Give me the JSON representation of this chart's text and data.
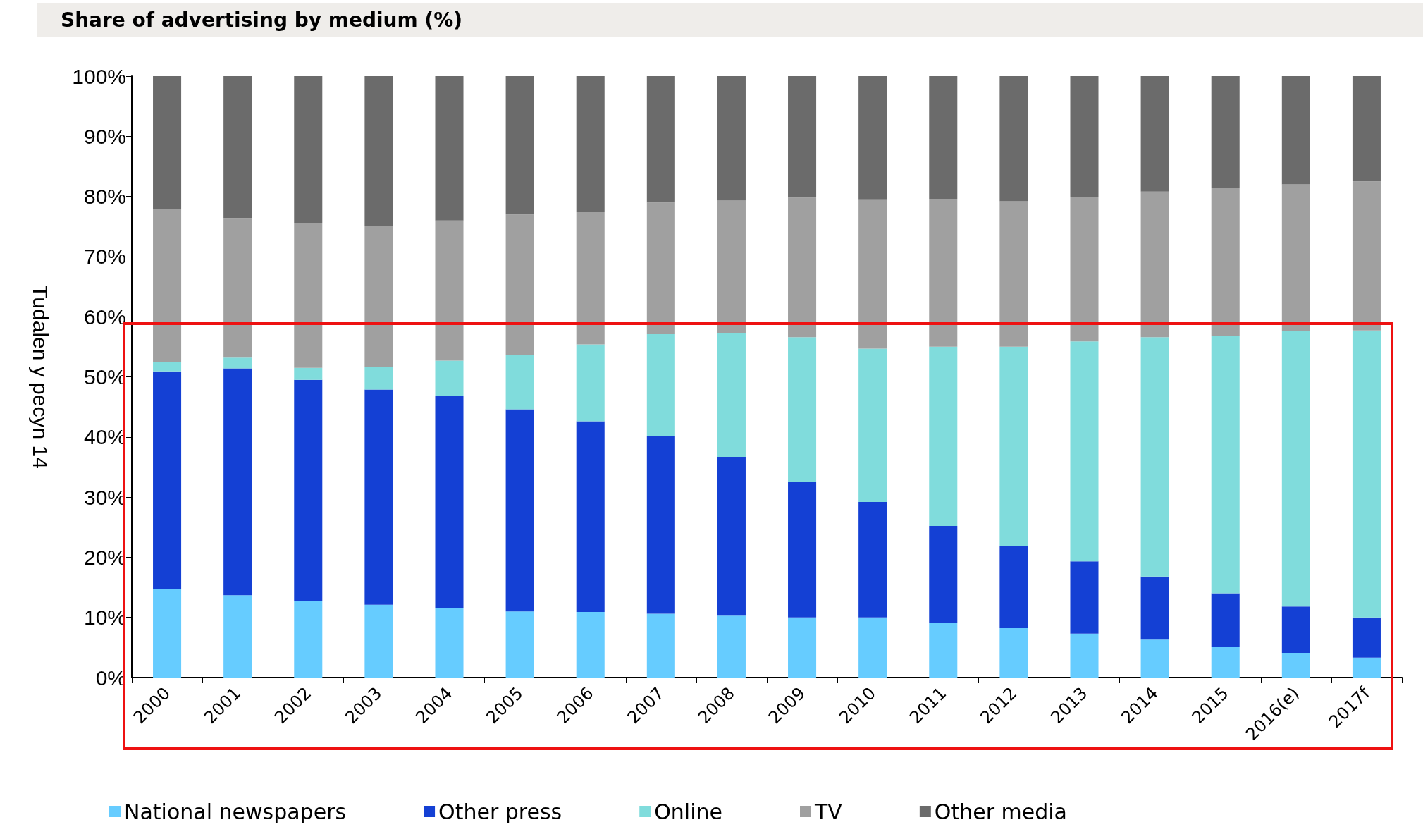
{
  "chart_data": {
    "type": "bar",
    "stacked": true,
    "title": "Share of advertising by medium (%)",
    "ylabel": "Tudalen y pecyn 14",
    "categories": [
      "2000",
      "2001",
      "2002",
      "2003",
      "2004",
      "2005",
      "2006",
      "2007",
      "2008",
      "2009",
      "2010",
      "2011",
      "2012",
      "2013",
      "2014",
      "2015",
      "2016(e)",
      "2017f"
    ],
    "series": [
      {
        "name": "National newspapers",
        "color": "#66ccff",
        "values": [
          14.7,
          13.7,
          12.7,
          12.1,
          11.6,
          11.0,
          10.9,
          10.6,
          10.3,
          10.0,
          10.0,
          9.1,
          8.2,
          7.3,
          6.3,
          5.1,
          4.1,
          3.3
        ]
      },
      {
        "name": "Other press",
        "color": "#1440d4",
        "values": [
          36.2,
          37.7,
          36.8,
          35.8,
          35.2,
          33.6,
          31.7,
          29.6,
          26.4,
          22.6,
          19.2,
          16.1,
          13.7,
          12.0,
          10.5,
          8.9,
          7.7,
          6.7
        ]
      },
      {
        "name": "Online",
        "color": "#80dcdc",
        "values": [
          1.5,
          1.8,
          2.0,
          3.8,
          5.9,
          9.0,
          12.8,
          16.9,
          20.6,
          24.0,
          25.5,
          29.8,
          33.1,
          36.6,
          39.8,
          42.8,
          45.8,
          47.7
        ]
      },
      {
        "name": "TV",
        "color": "#a0a0a0",
        "values": [
          25.5,
          23.2,
          24.0,
          23.4,
          23.3,
          23.4,
          22.1,
          21.9,
          22.0,
          23.2,
          24.8,
          24.6,
          24.2,
          24.0,
          24.2,
          24.6,
          24.4,
          24.8
        ]
      },
      {
        "name": "Other media",
        "color": "#6b6b6b",
        "values": [
          22.1,
          23.6,
          24.5,
          24.9,
          24.0,
          23.0,
          22.5,
          21.0,
          20.7,
          20.2,
          20.5,
          20.4,
          20.8,
          20.1,
          19.2,
          18.6,
          18.0,
          17.5
        ]
      }
    ],
    "ylim": [
      0,
      100
    ],
    "yticks": [
      {
        "value": 0,
        "label": "0%"
      },
      {
        "value": 10,
        "label": "10%"
      },
      {
        "value": 20,
        "label": "20%"
      },
      {
        "value": 30,
        "label": "30%"
      },
      {
        "value": 40,
        "label": "40%"
      },
      {
        "value": 50,
        "label": "50%"
      },
      {
        "value": 60,
        "label": "60%"
      },
      {
        "value": 70,
        "label": "70%"
      },
      {
        "value": 80,
        "label": "80%"
      },
      {
        "value": 90,
        "label": "90%"
      },
      {
        "value": 100,
        "label": "100%"
      }
    ],
    "legend": "bottom"
  }
}
